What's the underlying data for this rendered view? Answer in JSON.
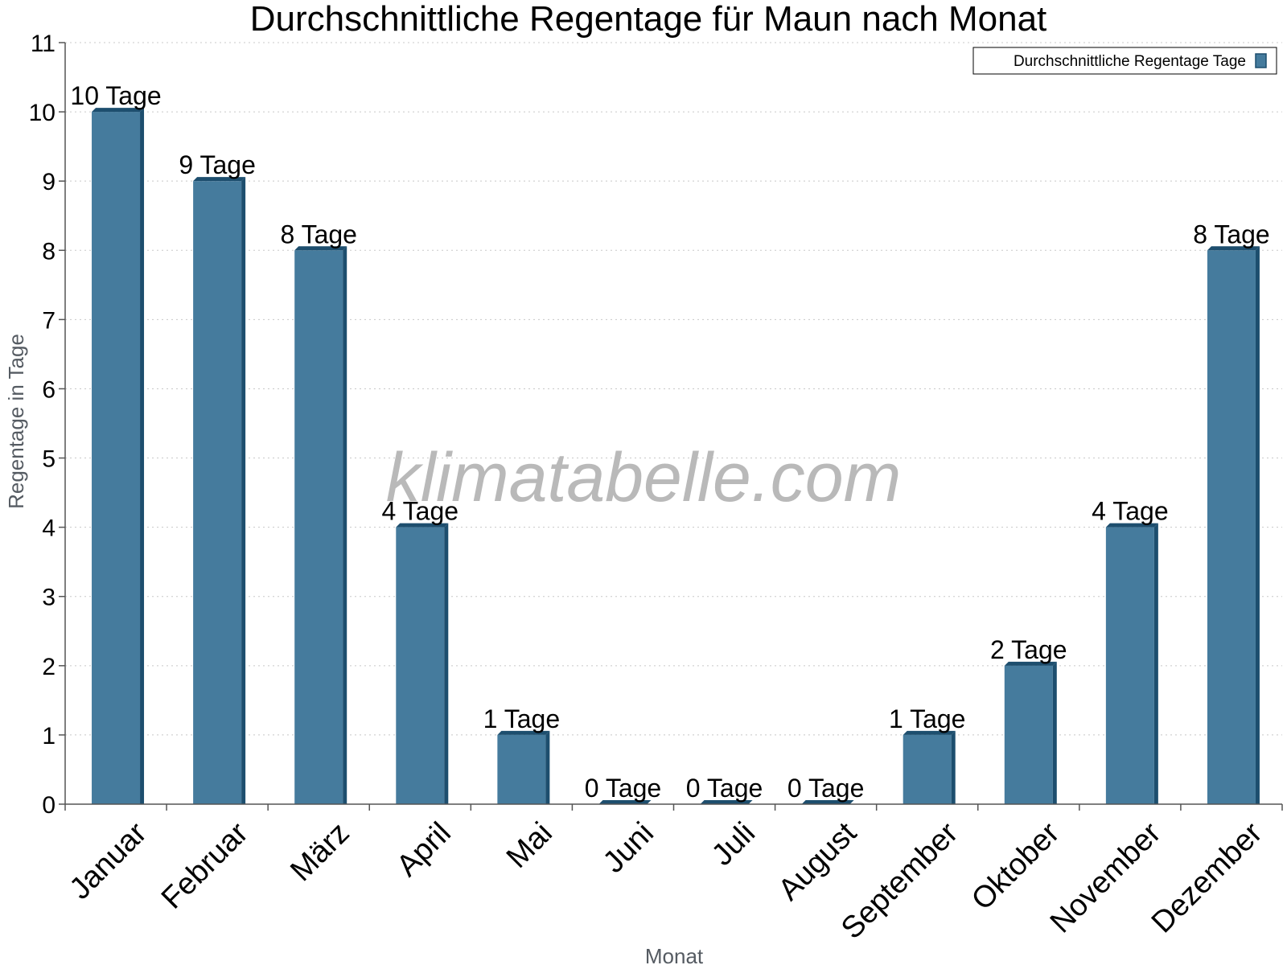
{
  "chart_data": {
    "type": "bar",
    "title": "Durchschnittliche Regentage für Maun nach Monat",
    "xlabel": "Monat",
    "ylabel": "Regentage in Tage",
    "ylim": [
      0,
      11
    ],
    "yticks": [
      "0",
      "1",
      "2",
      "3",
      "4",
      "5",
      "6",
      "7",
      "8",
      "9",
      "10",
      "11"
    ],
    "grid": true,
    "legend_position": "top-right",
    "categories": [
      "Januar",
      "Februar",
      "März",
      "April",
      "Mai",
      "Juni",
      "Juli",
      "August",
      "September",
      "Oktober",
      "November",
      "Dezember"
    ],
    "series": [
      {
        "name": "Durchschnittliche Regentage Tage",
        "values": [
          10,
          9,
          8,
          4,
          1,
          0,
          0,
          0,
          1,
          2,
          4,
          8
        ],
        "labels": [
          "10 Tage",
          "9 Tage",
          "8 Tage",
          "4 Tage",
          "1 Tage",
          "0 Tage",
          "0 Tage",
          "0 Tage",
          "1 Tage",
          "2 Tage",
          "4 Tage",
          "8 Tage"
        ],
        "color": "#457b9d",
        "shade_color": "#1d4e6e"
      }
    ],
    "watermark": "klimatabelle.com"
  }
}
